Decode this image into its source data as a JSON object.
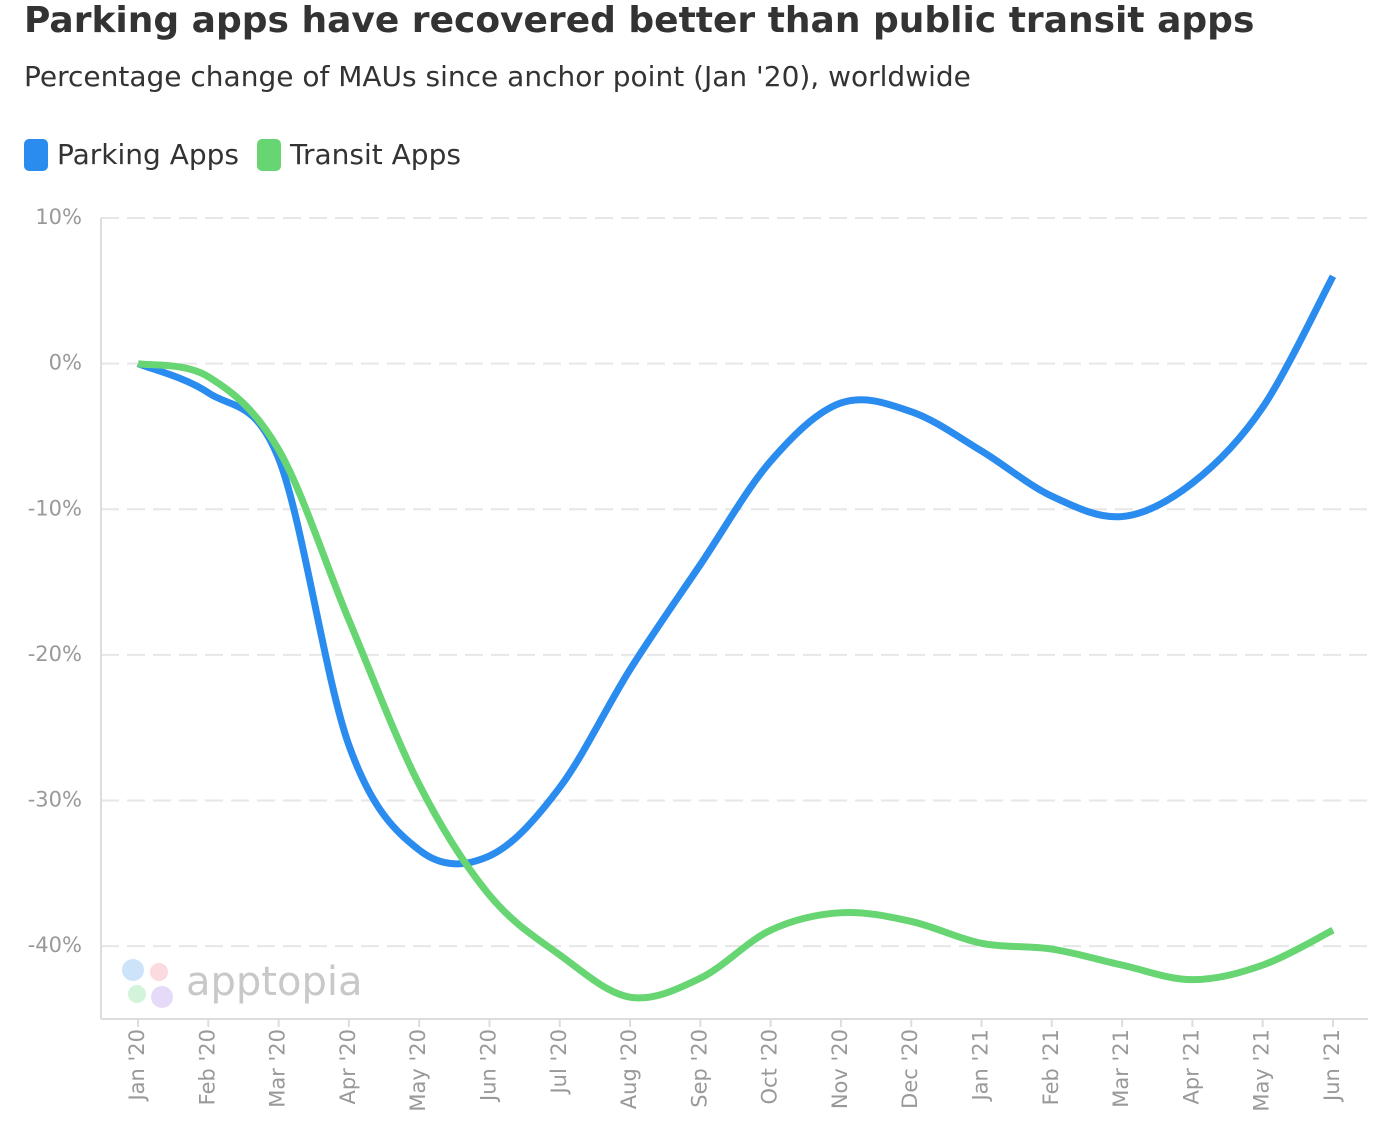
{
  "chart_data": {
    "type": "line",
    "title": "Parking apps have recovered better than public transit apps",
    "subtitle": "Percentage change of MAUs since anchor point (Jan '20), worldwide",
    "watermark": "apptopia",
    "categories": [
      "Jan '20",
      "Feb '20",
      "Mar '20",
      "Apr '20",
      "May '20",
      "Jun '20",
      "Jul '20",
      "Aug '20",
      "Sep '20",
      "Oct '20",
      "Nov '20",
      "Dec '20",
      "Jan '21",
      "Feb '21",
      "Mar '21",
      "Apr '21",
      "May '21",
      "Jun '21"
    ],
    "series": [
      {
        "name": "Parking Apps",
        "color": "#2b8cef",
        "values": [
          0,
          -2,
          -6.5,
          -26.2,
          -33.4,
          -33.8,
          -29.1,
          -21,
          -13.8,
          -6.7,
          -2.7,
          -3.3,
          -6,
          -9.1,
          -10.5,
          -8.2,
          -3,
          6
        ]
      },
      {
        "name": "Transit Apps",
        "color": "#67d672",
        "values": [
          0,
          -0.9,
          -5.9,
          -17.6,
          -28.9,
          -36.5,
          -40.6,
          -43.5,
          -42.2,
          -38.9,
          -37.7,
          -38.3,
          -39.8,
          -40.2,
          -41.3,
          -42.3,
          -41.3,
          -38.9
        ]
      }
    ],
    "ylim": [
      -45,
      10
    ],
    "yticks": [
      {
        "value": 10,
        "label": "10%"
      },
      {
        "value": 0,
        "label": "0%"
      },
      {
        "value": -10,
        "label": "-10%"
      },
      {
        "value": -20,
        "label": "-20%"
      },
      {
        "value": -30,
        "label": "-30%"
      },
      {
        "value": -40,
        "label": "-40%"
      }
    ],
    "grid": true,
    "legend": "top-left"
  }
}
